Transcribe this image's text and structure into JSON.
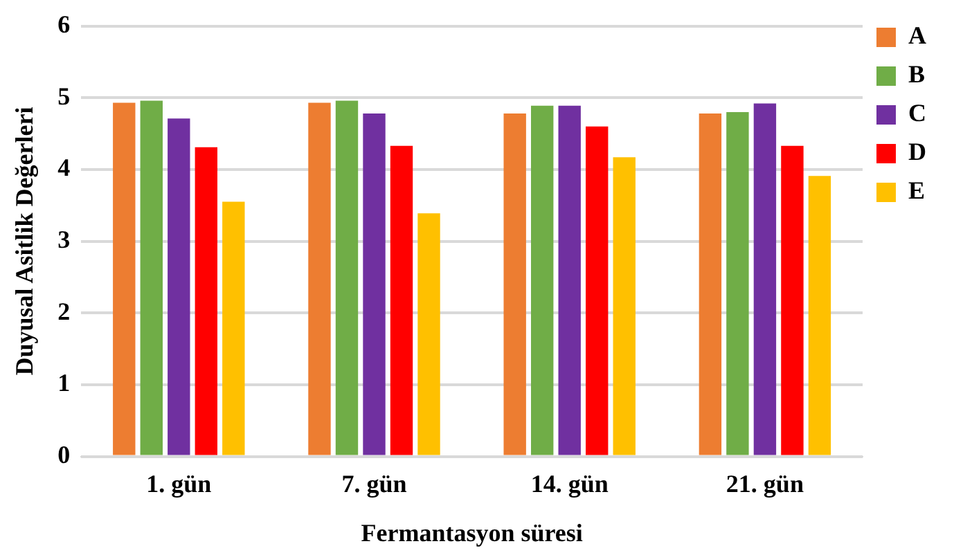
{
  "chart_data": {
    "type": "bar",
    "xlabel": "Fermantasyon süresi",
    "ylabel": "Duyusal Asitlik Değerleri",
    "categories": [
      "1. gün",
      "7. gün",
      "14. gün",
      "21. gün"
    ],
    "series": [
      {
        "name": "A",
        "color": "#ed7d31",
        "values": [
          4.93,
          4.93,
          4.78,
          4.78
        ]
      },
      {
        "name": "B",
        "color": "#70ad47",
        "values": [
          4.96,
          4.96,
          4.89,
          4.8
        ]
      },
      {
        "name": "C",
        "color": "#7030a0",
        "values": [
          4.71,
          4.78,
          4.89,
          4.92
        ]
      },
      {
        "name": "D",
        "color": "#ff0000",
        "values": [
          4.31,
          4.33,
          4.6,
          4.33
        ]
      },
      {
        "name": "E",
        "color": "#ffc000",
        "values": [
          3.55,
          3.39,
          4.17,
          3.91
        ]
      }
    ],
    "ylim": [
      0,
      6
    ],
    "yticks": [
      0,
      1,
      2,
      3,
      4,
      5,
      6
    ],
    "grid": "y",
    "legend": "right"
  }
}
